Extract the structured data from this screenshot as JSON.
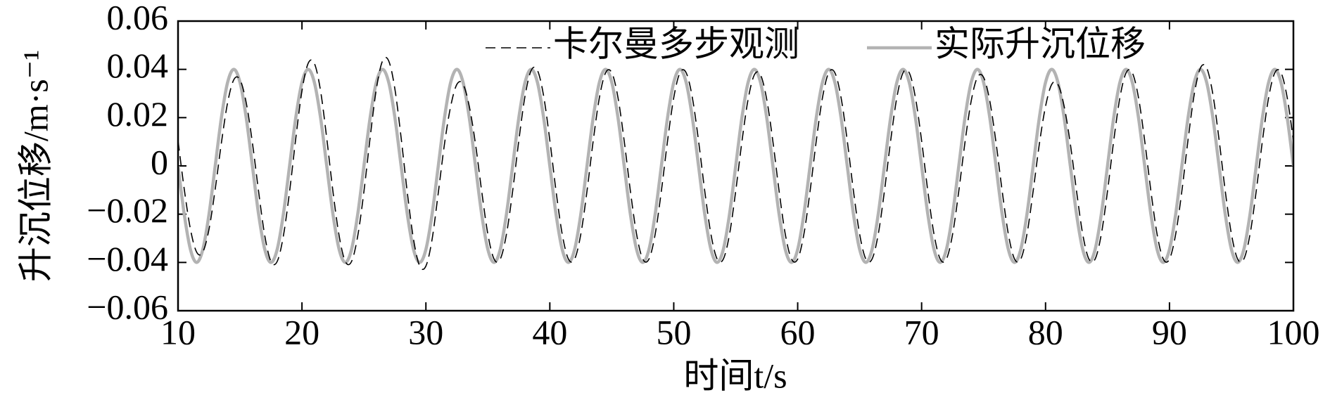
{
  "chart_data": {
    "type": "line",
    "x_label": "时间t/s",
    "y_label": "升沉位移/m·s⁻¹",
    "xlim": [
      10,
      100
    ],
    "xticks": [
      10,
      20,
      30,
      40,
      50,
      60,
      70,
      80,
      90,
      100
    ],
    "ylim": [
      -0.06,
      0.06
    ],
    "yticks": [
      {
        "value": -0.06,
        "label": "−0.06"
      },
      {
        "value": -0.04,
        "label": "−0.04"
      },
      {
        "value": -0.02,
        "label": "−0.02"
      },
      0,
      0.02,
      0.04,
      0.06
    ],
    "x": [
      10,
      10.5,
      11,
      11.5,
      12,
      12.5,
      13,
      13.5,
      14,
      14.5,
      15,
      15.5,
      16,
      16.5,
      17,
      17.5,
      18,
      18.5,
      19,
      19.5,
      20,
      20.5,
      21,
      21.5,
      22,
      22.5,
      23,
      23.5,
      24,
      24.5,
      25,
      25.5,
      26,
      26.5,
      27,
      27.5,
      28,
      28.5,
      29,
      29.5,
      30,
      30.5,
      31,
      31.5,
      32,
      32.5,
      33,
      33.5,
      34,
      34.5,
      35,
      35.5,
      36,
      36.5,
      37,
      37.5,
      38,
      38.5,
      39,
      39.5,
      40,
      40.5,
      41,
      41.5,
      42,
      42.5,
      43,
      43.5,
      44,
      44.5,
      45,
      45.5,
      46,
      46.5,
      47,
      47.5,
      48,
      48.5,
      49,
      49.5,
      50,
      50.5,
      51,
      51.5,
      52,
      52.5,
      53,
      53.5,
      54,
      54.5,
      55,
      55.5,
      56,
      56.5,
      57,
      57.5,
      58,
      58.5,
      59,
      59.5,
      60,
      60.5,
      61,
      61.5,
      62,
      62.5,
      63,
      63.5,
      64,
      64.5,
      65,
      65.5,
      66,
      66.5,
      67,
      67.5,
      68,
      68.5,
      69,
      69.5,
      70,
      70.5,
      71,
      71.5,
      72,
      72.5,
      73,
      73.5,
      74,
      74.5,
      75,
      75.5,
      76,
      76.5,
      77,
      77.5,
      78,
      78.5,
      79,
      79.5,
      80,
      80.5,
      81,
      81.5,
      82,
      82.5,
      83,
      83.5,
      84,
      84.5,
      85,
      85.5,
      86,
      86.5,
      87,
      87.5,
      88,
      88.5,
      89,
      89.5,
      90,
      90.5,
      91,
      91.5,
      92,
      92.5,
      93,
      93.5,
      94,
      94.5,
      95,
      95.5,
      96,
      96.5,
      97,
      97.5,
      98,
      98.5,
      99,
      99.5,
      100
    ],
    "series": [
      {
        "name": "卡尔曼多步观测",
        "color": "#000000",
        "style": "dashed",
        "values": [
          0.0104,
          -0.0096,
          -0.0262,
          -0.0357,
          -0.0357,
          -0.0262,
          -0.0096,
          0.0096,
          0.0262,
          0.0357,
          0.0357,
          0.0262,
          0.0096,
          -0.0106,
          -0.029,
          -0.0396,
          -0.0396,
          -0.029,
          -0.0106,
          0.0114,
          0.0311,
          0.0425,
          0.0425,
          0.0311,
          0.0114,
          -0.0106,
          -0.029,
          -0.0396,
          -0.0396,
          -0.029,
          -0.0106,
          0.0117,
          0.0318,
          0.0435,
          0.0435,
          0.0318,
          0.0117,
          -0.0111,
          -0.0304,
          -0.0415,
          -0.0415,
          -0.0304,
          -0.0111,
          0.0091,
          0.0247,
          0.0338,
          0.0338,
          0.0247,
          0.0091,
          -0.0104,
          -0.0283,
          -0.0386,
          -0.0386,
          -0.0283,
          -0.0104,
          0.0106,
          0.029,
          0.0396,
          0.0396,
          0.029,
          0.0106,
          -0.0104,
          -0.0283,
          -0.0386,
          -0.0386,
          -0.0283,
          -0.0104,
          0.0104,
          0.0283,
          0.0386,
          0.0386,
          0.0283,
          0.0104,
          -0.0104,
          -0.0283,
          -0.0386,
          -0.0386,
          -0.0283,
          -0.0104,
          0.0104,
          0.0283,
          0.0386,
          0.0386,
          0.0283,
          0.0104,
          -0.0104,
          -0.0283,
          -0.0386,
          -0.0386,
          -0.0283,
          -0.0104,
          0.0101,
          0.0276,
          0.0377,
          0.0377,
          0.0276,
          0.0101,
          -0.0104,
          -0.0283,
          -0.0386,
          -0.0386,
          -0.0283,
          -0.0104,
          0.0104,
          0.0283,
          0.0386,
          0.0386,
          0.0283,
          0.0104,
          -0.0104,
          -0.0283,
          -0.0386,
          -0.0386,
          -0.0283,
          -0.0104,
          0.0104,
          0.0283,
          0.0386,
          0.0386,
          0.0283,
          0.0104,
          -0.0104,
          -0.0283,
          -0.0386,
          -0.0386,
          -0.0283,
          -0.0104,
          0.0098,
          0.0269,
          0.0367,
          0.0367,
          0.0269,
          0.0098,
          -0.0104,
          -0.0283,
          -0.0386,
          -0.0386,
          -0.0283,
          -0.0104,
          0.0091,
          0.0247,
          0.0338,
          0.0338,
          0.0247,
          0.0091,
          -0.0104,
          -0.0283,
          -0.0386,
          -0.0386,
          -0.0283,
          -0.0104,
          0.0104,
          0.0283,
          0.0386,
          0.0386,
          0.0283,
          0.0104,
          -0.0104,
          -0.0283,
          -0.0386,
          -0.0386,
          -0.0283,
          -0.0104,
          0.0109,
          0.0297,
          0.0406,
          0.0406,
          0.0297,
          0.0109,
          -0.0104,
          -0.0283,
          -0.0386,
          -0.0386,
          -0.0283,
          -0.0104,
          0.0104,
          0.0283,
          0.0386,
          0.0386,
          0.0283,
          0.0104
        ]
      },
      {
        "name": "实际升沉位移",
        "color": "#b3b3b3",
        "style": "solid",
        "values": [
          0,
          -0.02,
          -0.0346,
          -0.04,
          -0.0346,
          -0.02,
          0,
          0.02,
          0.0346,
          0.04,
          0.0346,
          0.02,
          0,
          -0.02,
          -0.0346,
          -0.04,
          -0.0346,
          -0.02,
          0,
          0.02,
          0.0346,
          0.04,
          0.0346,
          0.02,
          0,
          -0.02,
          -0.0346,
          -0.04,
          -0.0346,
          -0.02,
          0,
          0.02,
          0.0346,
          0.04,
          0.0346,
          0.02,
          0,
          -0.02,
          -0.0346,
          -0.04,
          -0.0346,
          -0.02,
          0,
          0.02,
          0.0346,
          0.04,
          0.0346,
          0.02,
          0,
          -0.02,
          -0.0346,
          -0.04,
          -0.0346,
          -0.02,
          0,
          0.02,
          0.0346,
          0.04,
          0.0346,
          0.02,
          0,
          -0.02,
          -0.0346,
          -0.04,
          -0.0346,
          -0.02,
          0,
          0.02,
          0.0346,
          0.04,
          0.0346,
          0.02,
          0,
          -0.02,
          -0.0346,
          -0.04,
          -0.0346,
          -0.02,
          0,
          0.02,
          0.0346,
          0.04,
          0.0346,
          0.02,
          0,
          -0.02,
          -0.0346,
          -0.04,
          -0.0346,
          -0.02,
          0,
          0.02,
          0.0346,
          0.04,
          0.0346,
          0.02,
          0,
          -0.02,
          -0.0346,
          -0.04,
          -0.0346,
          -0.02,
          0,
          0.02,
          0.0346,
          0.04,
          0.0346,
          0.02,
          0,
          -0.02,
          -0.0346,
          -0.04,
          -0.0346,
          -0.02,
          0,
          0.02,
          0.0346,
          0.04,
          0.0346,
          0.02,
          0,
          -0.02,
          -0.0346,
          -0.04,
          -0.0346,
          -0.02,
          0,
          0.02,
          0.0346,
          0.04,
          0.0346,
          0.02,
          0,
          -0.02,
          -0.0346,
          -0.04,
          -0.0346,
          -0.02,
          0,
          0.02,
          0.0346,
          0.04,
          0.0346,
          0.02,
          0,
          -0.02,
          -0.0346,
          -0.04,
          -0.0346,
          -0.02,
          0,
          0.02,
          0.0346,
          0.04,
          0.0346,
          0.02,
          0,
          -0.02,
          -0.0346,
          -0.04,
          -0.0346,
          -0.02,
          0,
          0.02,
          0.0346,
          0.04,
          0.0346,
          0.02,
          0,
          -0.02,
          -0.0346,
          -0.04,
          -0.0346,
          -0.02,
          0,
          0.02,
          0.0346,
          0.04,
          0.0346,
          0.02,
          0
        ]
      }
    ],
    "legend": "top"
  }
}
